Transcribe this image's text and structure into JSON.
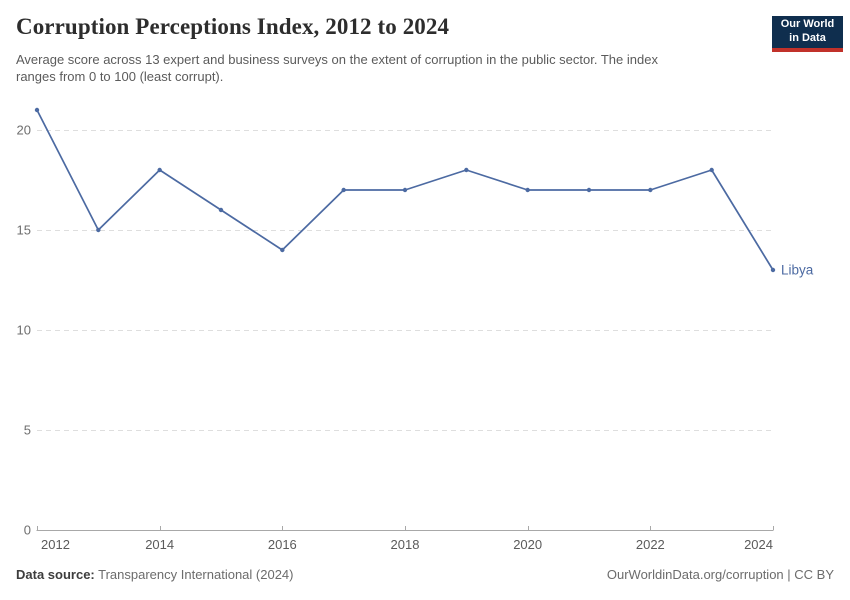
{
  "header": {
    "title": "Corruption Perceptions Index, 2012 to 2024",
    "subtitle": "Average score across 13 expert and business surveys on the extent of corruption in the public sector. The index ranges from 0 to 100 (least corrupt)."
  },
  "logo": {
    "line1": "Our World",
    "line2": "in Data",
    "bg_color": "#0f2e4e",
    "bar_color": "#c1312a"
  },
  "chart_data": {
    "type": "line",
    "title": "Corruption Perceptions Index, 2012 to 2024",
    "x": [
      2012,
      2013,
      2014,
      2015,
      2016,
      2017,
      2018,
      2019,
      2020,
      2021,
      2022,
      2023,
      2024
    ],
    "series": [
      {
        "name": "Libya",
        "values": [
          21,
          15,
          18,
          16,
          14,
          17,
          17,
          18,
          17,
          17,
          17,
          18,
          13
        ],
        "color": "#4c6aa2"
      }
    ],
    "xticks": [
      2012,
      2014,
      2016,
      2018,
      2020,
      2022,
      2024
    ],
    "yticks": [
      0,
      5,
      10,
      15,
      20
    ],
    "ylim": [
      0,
      21.5
    ],
    "xlabel": "",
    "ylabel": "",
    "grid": true,
    "legend": "end-of-line-label",
    "end_label": "Libya",
    "grid_color": "#dedede",
    "axis_color": "#a8a8a8",
    "y_tick_label_color": "#6e6e6e",
    "x_tick_label_color": "#5b5b5b"
  },
  "footer": {
    "source_label": "Data source:",
    "source_value": "Transparency International (2024)",
    "rights": "OurWorldinData.org/corruption | CC BY"
  }
}
